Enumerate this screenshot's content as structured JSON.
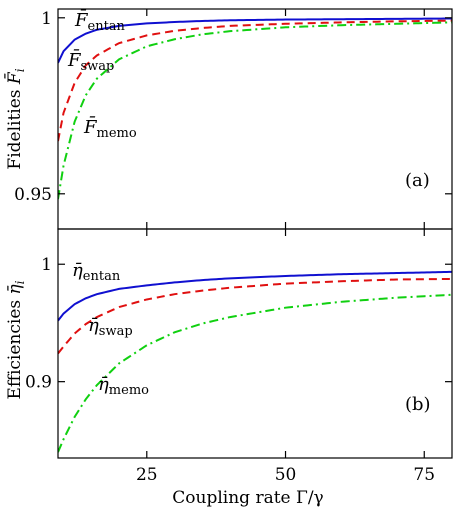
{
  "chart_data": [
    {
      "type": "line",
      "panel": "(a)",
      "ylabel": "Fidelities",
      "ylabel_symbol": "F̄",
      "ylabel_subscript": "i",
      "xlim": [
        9,
        80
      ],
      "ylim": [
        0.94,
        1.0025
      ],
      "yticks": [
        0.95,
        1
      ],
      "ytick_labels": [
        "0.95",
        "1"
      ],
      "xticks": [
        25,
        50,
        75
      ],
      "grid": false,
      "series": [
        {
          "name": "F̄entan",
          "symbol": "F̄",
          "subscript": "entan",
          "style": "solid",
          "color": "#1010d0",
          "x": [
            9,
            10,
            12,
            14,
            16,
            20,
            25,
            30,
            35,
            40,
            50,
            60,
            70,
            80
          ],
          "y": [
            0.9872,
            0.9905,
            0.9938,
            0.9955,
            0.9966,
            0.9977,
            0.9984,
            0.9988,
            0.9991,
            0.9993,
            0.9995,
            0.9996,
            0.9997,
            0.9998
          ]
        },
        {
          "name": "F̄swap",
          "symbol": "F̄",
          "subscript": "swap",
          "style": "dashed",
          "color": "#e01010",
          "x": [
            9,
            10,
            12,
            14,
            16,
            20,
            25,
            30,
            35,
            40,
            50,
            60,
            70,
            80
          ],
          "y": [
            0.965,
            0.973,
            0.9815,
            0.9865,
            0.9893,
            0.9928,
            0.995,
            0.9963,
            0.9971,
            0.9977,
            0.9983,
            0.9987,
            0.999,
            0.9992
          ]
        },
        {
          "name": "F̄memo",
          "symbol": "F̄",
          "subscript": "memo",
          "style": "dashdot",
          "color": "#10d010",
          "x": [
            9,
            10,
            12,
            14,
            16,
            20,
            25,
            30,
            35,
            40,
            50,
            60,
            70,
            80
          ],
          "y": [
            0.9485,
            0.958,
            0.9705,
            0.978,
            0.9827,
            0.9882,
            0.9919,
            0.9939,
            0.9953,
            0.9962,
            0.9973,
            0.9979,
            0.9983,
            0.9987
          ]
        }
      ]
    },
    {
      "type": "line",
      "panel": "(b)",
      "ylabel": "Efficiencies",
      "ylabel_symbol": "η̄",
      "ylabel_subscript": "i",
      "xlabel": "Coupling rate Γ/γ",
      "xlim": [
        9,
        80
      ],
      "ylim": [
        0.835,
        1.03
      ],
      "yticks": [
        0.9,
        1
      ],
      "ytick_labels": [
        "0.9",
        "1"
      ],
      "xticks": [
        25,
        50,
        75
      ],
      "xtick_labels": [
        "25",
        "50",
        "75"
      ],
      "grid": false,
      "series": [
        {
          "name": "η̄entan",
          "symbol": "η̄",
          "subscript": "entan",
          "style": "solid",
          "color": "#1010d0",
          "x": [
            9,
            10,
            12,
            14,
            16,
            20,
            25,
            30,
            35,
            40,
            50,
            60,
            70,
            80
          ],
          "y": [
            0.952,
            0.958,
            0.966,
            0.971,
            0.9745,
            0.979,
            0.982,
            0.9845,
            0.9865,
            0.988,
            0.99,
            0.9915,
            0.9925,
            0.9935
          ]
        },
        {
          "name": "η̄swap",
          "symbol": "η̄",
          "subscript": "swap",
          "style": "dashed",
          "color": "#e01010",
          "x": [
            9,
            10,
            12,
            14,
            16,
            20,
            25,
            30,
            35,
            40,
            50,
            60,
            70,
            80
          ],
          "y": [
            0.924,
            0.93,
            0.941,
            0.949,
            0.955,
            0.9635,
            0.97,
            0.9745,
            0.9775,
            0.98,
            0.9835,
            0.9855,
            0.987,
            0.9875
          ]
        },
        {
          "name": "η̄memo",
          "symbol": "η̄",
          "subscript": "memo",
          "style": "dashdot",
          "color": "#10d010",
          "x": [
            9,
            10,
            12,
            14,
            16,
            20,
            25,
            30,
            35,
            40,
            50,
            60,
            70,
            80
          ],
          "y": [
            0.84,
            0.851,
            0.87,
            0.885,
            0.897,
            0.9155,
            0.931,
            0.942,
            0.9495,
            0.955,
            0.963,
            0.968,
            0.9715,
            0.974
          ]
        }
      ]
    }
  ]
}
